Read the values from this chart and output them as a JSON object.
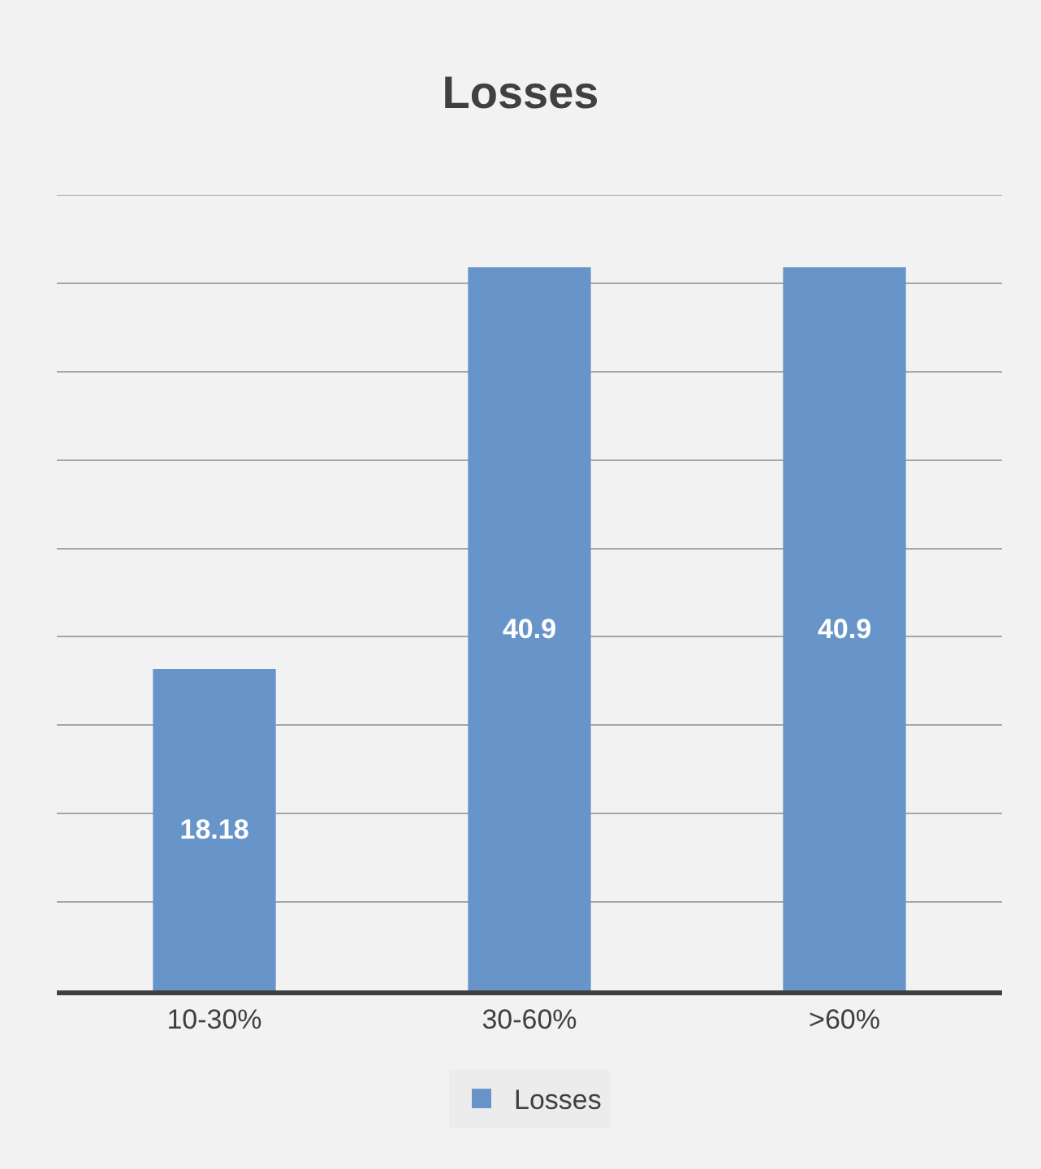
{
  "chart_data": {
    "type": "bar",
    "title": "Losses",
    "categories": [
      "10-30%",
      "30-60%",
      ">60%"
    ],
    "series": [
      {
        "name": "Losses",
        "color": "#6794c9",
        "values": [
          18.18,
          40.9,
          40.9
        ]
      }
    ],
    "data_labels": true,
    "ylim": [
      0,
      45
    ],
    "yticks": [
      {
        "value": 0,
        "label": null
      },
      {
        "value": 5,
        "label": null
      },
      {
        "value": 10,
        "label": null
      },
      {
        "value": 15,
        "label": null
      },
      {
        "value": 20,
        "label": null
      },
      {
        "value": 25,
        "label": null
      },
      {
        "value": 30,
        "label": null
      },
      {
        "value": 35,
        "label": null
      },
      {
        "value": 40,
        "label": null
      },
      {
        "value": 45,
        "label": null
      }
    ],
    "grid": "y",
    "legend": "bottom",
    "tick_labels": "x"
  }
}
